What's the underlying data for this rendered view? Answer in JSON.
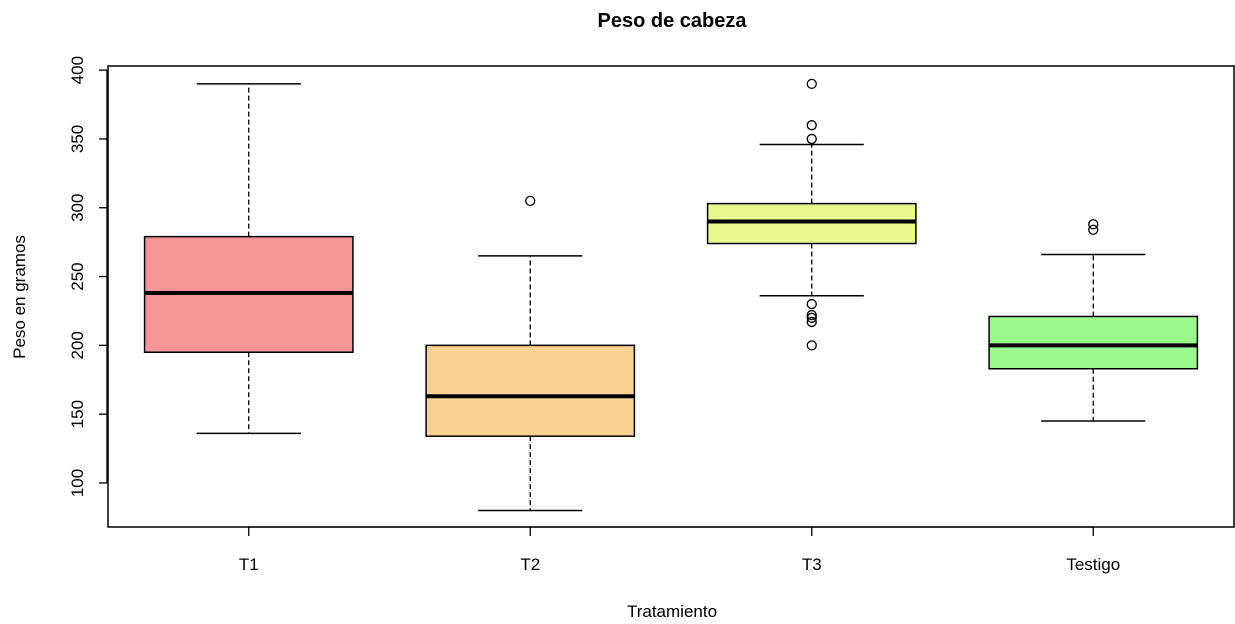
{
  "chart_data": {
    "type": "boxplot",
    "title": "Peso de cabeza",
    "xlabel": "Tratamiento",
    "ylabel": "Peso en gramos",
    "ylim": [
      68,
      403
    ],
    "yticks": [
      100,
      150,
      200,
      250,
      300,
      350,
      400
    ],
    "grid": false,
    "categories": [
      "T1",
      "T2",
      "T3",
      "Testigo"
    ],
    "colors": [
      "#f69596",
      "#f9d293",
      "#e9f88f",
      "#9bf88e"
    ],
    "boxes": [
      {
        "category": "T1",
        "whisker_low": 136,
        "q1": 195,
        "median": 238,
        "q3": 279,
        "whisker_high": 390,
        "outliers": []
      },
      {
        "category": "T2",
        "whisker_low": 80,
        "q1": 134,
        "median": 163,
        "q3": 200,
        "whisker_high": 265,
        "outliers": [
          305
        ]
      },
      {
        "category": "T3",
        "whisker_low": 236,
        "q1": 274,
        "median": 290,
        "q3": 303,
        "whisker_high": 346,
        "outliers": [
          390,
          360,
          350,
          230,
          222,
          220,
          217,
          200
        ]
      },
      {
        "category": "Testigo",
        "whisker_low": 145,
        "q1": 183,
        "median": 200,
        "q3": 221,
        "whisker_high": 266,
        "outliers": [
          288,
          284
        ]
      }
    ]
  }
}
